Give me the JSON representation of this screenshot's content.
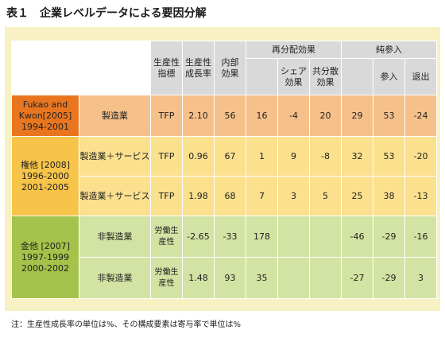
{
  "title": "表１　企業レベルデータによる要因分解",
  "header": {
    "tfp_index": [
      "生産性",
      "指標"
    ],
    "growth_rate": [
      "生産性",
      "成長率"
    ],
    "internal_effect": [
      "内部",
      "効果"
    ],
    "realloc_effect": "再分配効果",
    "share_effect": [
      "シェア",
      "効果"
    ],
    "covar_effect": [
      "共分散",
      "効果"
    ],
    "net_entry": "純参入",
    "entry": "参入",
    "exit": "退出"
  },
  "groups": [
    {
      "source": [
        "Fukao and",
        "Kwon[2005]",
        "1994-2001"
      ],
      "rows": [
        {
          "sector": "製造業",
          "indicator": [
            "TFP"
          ],
          "growth": "2.10",
          "internal": "56",
          "realloc": "16",
          "share": "-4",
          "covar": "20",
          "net_entry": "29",
          "entry": "53",
          "exit": "-24"
        }
      ]
    },
    {
      "source": [
        "権他 [2008]",
        "1996-2000",
        "2001-2005"
      ],
      "rows": [
        {
          "sector": "製造業＋サービス",
          "indicator": [
            "TFP"
          ],
          "growth": "0.96",
          "internal": "67",
          "realloc": "1",
          "share": "9",
          "covar": "-8",
          "net_entry": "32",
          "entry": "53",
          "exit": "-20"
        },
        {
          "sector": "製造業＋サービス",
          "indicator": [
            "TFP"
          ],
          "growth": "1.98",
          "internal": "68",
          "realloc": "7",
          "share": "3",
          "covar": "5",
          "net_entry": "25",
          "entry": "38",
          "exit": "-13"
        }
      ]
    },
    {
      "source": [
        "金他 [2007]",
        "1997-1999",
        "2000-2002"
      ],
      "rows": [
        {
          "sector": "非製造業",
          "indicator": [
            "労働生",
            "産性"
          ],
          "growth": "-2.65",
          "internal": "-33",
          "realloc": "178",
          "share": "",
          "covar": "",
          "net_entry": "-46",
          "entry": "-29",
          "exit": "-16"
        },
        {
          "sector": "非製造業",
          "indicator": [
            "労働生",
            "産性"
          ],
          "growth": "1.48",
          "internal": "93",
          "realloc": "35",
          "share": "",
          "covar": "",
          "net_entry": "-27",
          "entry": "-29",
          "exit": "3"
        }
      ]
    }
  ],
  "colors": {
    "frame": "#f7f1c4",
    "header_gray": "#d9d9d9",
    "fukao_dark": "#e9761f",
    "fukao_light": "#f6c08a",
    "kwon_dark": "#f7c44a",
    "kwon_light": "#fbe08e",
    "kim_dark": "#a5c24a",
    "kim_light": "#d3e3a3"
  },
  "note": "注：生産性成長率の単位は%、その構成要素は寄与率で単位は%"
}
